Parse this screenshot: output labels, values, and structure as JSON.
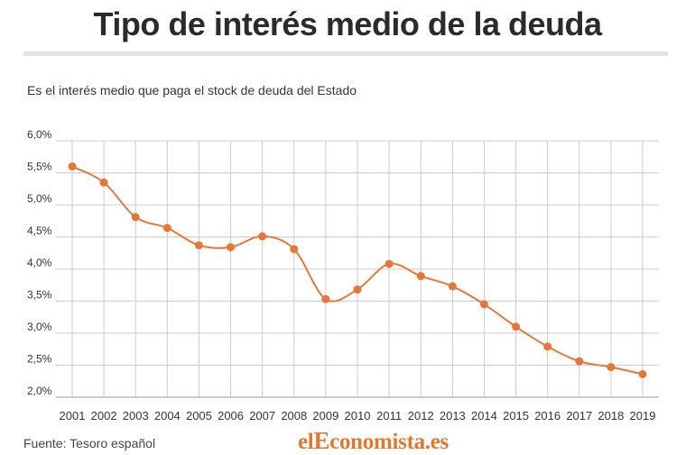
{
  "header": {
    "title": "Tipo de interés medio de la deuda",
    "subtitle": "Es el interés medio que paga el stock de deuda del Estado"
  },
  "footer": {
    "source": "Fuente: Tesoro español",
    "logo_prefix": "el",
    "logo_initial": "E",
    "logo_rest": "conomista.es"
  },
  "colors": {
    "series": "#e4773a",
    "grid": "#cccccc",
    "axis": "#999999",
    "logo": "#e4772f"
  },
  "chart_data": {
    "type": "line",
    "x": [
      "2001",
      "2002",
      "2003",
      "2004",
      "2005",
      "2006",
      "2007",
      "2008",
      "2009",
      "2010",
      "2011",
      "2012",
      "2013",
      "2014",
      "2015",
      "2016",
      "2017",
      "2018",
      "2019"
    ],
    "series": [
      {
        "values": [
          5.6,
          5.35,
          4.81,
          4.64,
          4.37,
          4.34,
          4.51,
          4.31,
          3.53,
          3.68,
          4.08,
          3.89,
          3.73,
          3.45,
          3.1,
          2.79,
          2.56,
          2.47,
          2.36
        ]
      }
    ],
    "yticks": [
      "6,0%",
      "5,5%",
      "5,0%",
      "4,5%",
      "4,0%",
      "3,5%",
      "3,0%",
      "2,5%",
      "2,0%"
    ],
    "ylim": [
      2.0,
      6.0
    ],
    "grid": true,
    "legend": "none"
  }
}
